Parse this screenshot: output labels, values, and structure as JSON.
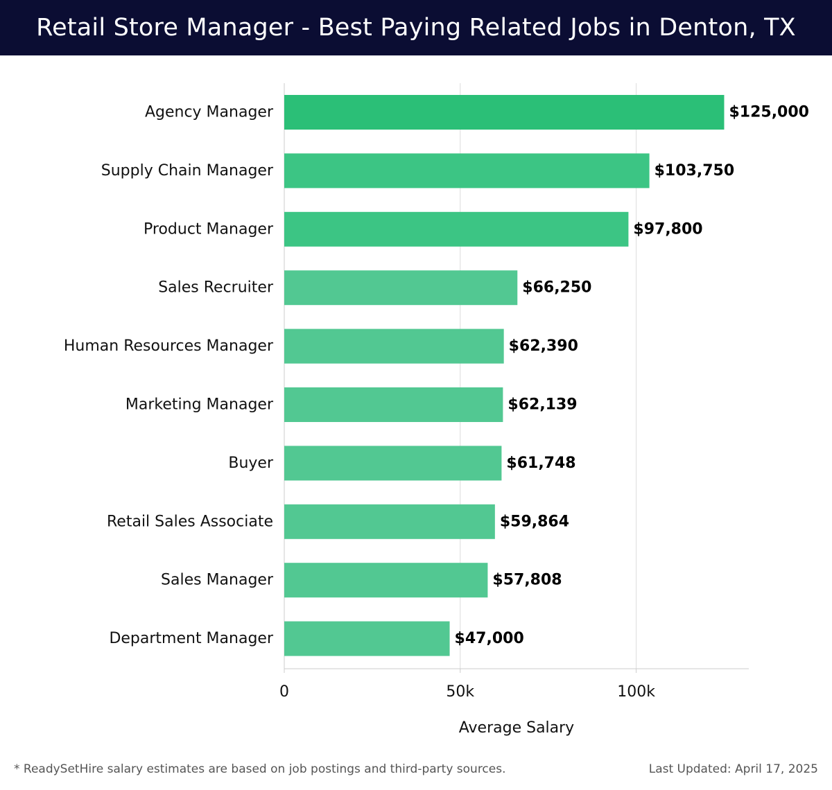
{
  "header": {
    "title": "Retail Store Manager - Best Paying Related Jobs in Denton, TX"
  },
  "chart_data": {
    "type": "bar",
    "orientation": "horizontal",
    "title": "Retail Store Manager - Best Paying Related Jobs in Denton, TX",
    "xlabel": "Average Salary",
    "ylabel": "",
    "categories": [
      "Agency Manager",
      "Supply Chain Manager",
      "Product Manager",
      "Sales Recruiter",
      "Human Resources Manager",
      "Marketing Manager",
      "Buyer",
      "Retail Sales Associate",
      "Sales Manager",
      "Department Manager"
    ],
    "values": [
      125000,
      103750,
      97800,
      66250,
      62390,
      62139,
      61748,
      59864,
      57808,
      47000
    ],
    "value_labels": [
      "$125,000",
      "$103,750",
      "$97,800",
      "$66,250",
      "$62,390",
      "$62,139",
      "$61,748",
      "$59,864",
      "$57,808",
      "$47,000"
    ],
    "xlim": [
      0,
      132000
    ],
    "xticks": [
      0,
      50000,
      100000
    ],
    "xtick_labels": [
      "0",
      "50k",
      "100k"
    ],
    "grid": "vertical",
    "legend": "none",
    "colors": {
      "bar_top": "#2bbf77",
      "bar_high": "#3cc584",
      "bar_rest": "#52c892",
      "grid": "#dddddd",
      "axis": "#cccccc",
      "text": "#111111"
    }
  },
  "footer": {
    "note": "* ReadySetHire salary estimates are based on job postings and third-party sources.",
    "updated": "Last Updated: April 17, 2025"
  }
}
